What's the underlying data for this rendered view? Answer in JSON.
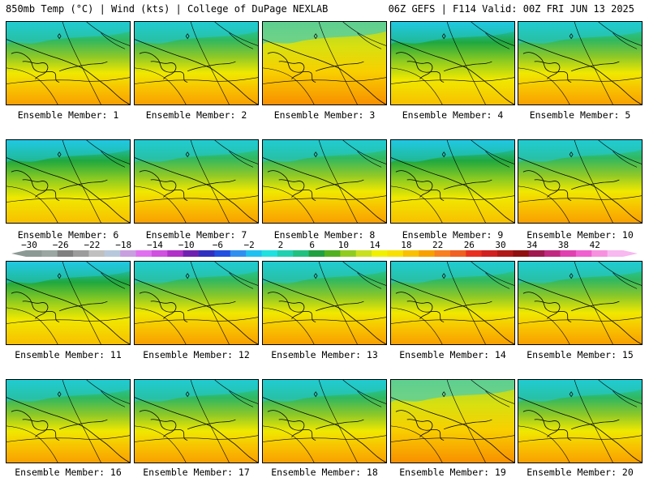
{
  "header": {
    "title_left": "850mb Temp (°C) | Wind (kts) | College of DuPage NEXLAB",
    "title_right": "06Z GEFS | F114 Valid: 00Z FRI JUN 13 2025"
  },
  "members": [
    {
      "label": "Ensemble Member: 1"
    },
    {
      "label": "Ensemble Member: 2"
    },
    {
      "label": "Ensemble Member: 3"
    },
    {
      "label": "Ensemble Member: 4"
    },
    {
      "label": "Ensemble Member: 5"
    },
    {
      "label": "Ensemble Member: 6"
    },
    {
      "label": "Ensemble Member: 7"
    },
    {
      "label": "Ensemble Member: 8"
    },
    {
      "label": "Ensemble Member: 9"
    },
    {
      "label": "Ensemble Member: 10"
    },
    {
      "label": "Ensemble Member: 11"
    },
    {
      "label": "Ensemble Member: 12"
    },
    {
      "label": "Ensemble Member: 13"
    },
    {
      "label": "Ensemble Member: 14"
    },
    {
      "label": "Ensemble Member: 15"
    },
    {
      "label": "Ensemble Member: 16"
    },
    {
      "label": "Ensemble Member: 17"
    },
    {
      "label": "Ensemble Member: 18"
    },
    {
      "label": "Ensemble Member: 19"
    },
    {
      "label": "Ensemble Member: 20"
    }
  ],
  "colorbar": {
    "labels": [
      "−30",
      "−26",
      "−22",
      "−18",
      "−14",
      "−10",
      "−6",
      "−2",
      "2",
      "6",
      "10",
      "14",
      "18",
      "22",
      "26",
      "30",
      "34",
      "38",
      "42"
    ],
    "colors": [
      "#8c9a95",
      "#9aa7a2",
      "#808080",
      "#9c9c9c",
      "#c0c0c0",
      "#b8c8dc",
      "#c8a0e0",
      "#e070f0",
      "#d050e0",
      "#b030c8",
      "#7020b0",
      "#3030c0",
      "#2050e0",
      "#3090f0",
      "#20c0f0",
      "#20e0e0",
      "#20d0b0",
      "#20c080",
      "#20a040",
      "#50b020",
      "#90cc20",
      "#c8e020",
      "#f0f000",
      "#f8e000",
      "#f8c000",
      "#f8a000",
      "#f88020",
      "#f06020",
      "#e83020",
      "#d02020",
      "#b01818",
      "#901010",
      "#a01850",
      "#c02880",
      "#e040b0",
      "#f060d0",
      "#f890e0",
      "#f8b8f0"
    ]
  }
}
